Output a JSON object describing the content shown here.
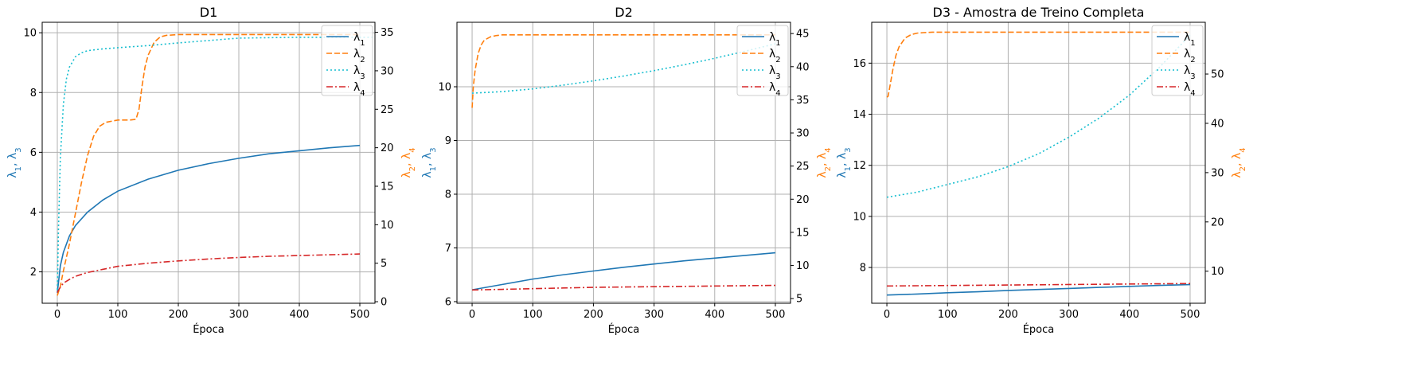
{
  "colors": {
    "lambda1": "#1f77b4",
    "lambda2": "#ff7f0e",
    "lambda3": "#17becf",
    "lambda4": "#d62728",
    "grid": "#b0b0b0"
  },
  "chart_data": [
    {
      "type": "line",
      "title": "D1",
      "xlabel": "Época",
      "ylabel_left": [
        "λ1",
        "λ3"
      ],
      "ylabel_right": [
        "λ2",
        "λ4"
      ],
      "xlim": [
        -25,
        525
      ],
      "ylim_left": [
        0.95,
        10.35
      ],
      "ylim_right": [
        -0.2,
        36.3
      ],
      "xticks": [
        0,
        100,
        200,
        300,
        400,
        500
      ],
      "yticks_left": [
        2,
        4,
        6,
        8,
        10
      ],
      "yticks_right": [
        0,
        5,
        10,
        15,
        20,
        25,
        30,
        35
      ],
      "grid": true,
      "legend": {
        "location": "upper right",
        "entries": [
          "λ1",
          "λ2",
          "λ3",
          "λ4"
        ]
      },
      "series": [
        {
          "name": "λ1",
          "axis": "left",
          "style": "solid",
          "x": [
            0,
            5,
            10,
            20,
            30,
            50,
            75,
            100,
            150,
            200,
            250,
            300,
            350,
            400,
            450,
            500
          ],
          "y": [
            1.3,
            2.2,
            2.65,
            3.2,
            3.55,
            4.0,
            4.4,
            4.7,
            5.1,
            5.4,
            5.62,
            5.8,
            5.95,
            6.05,
            6.15,
            6.23
          ]
        },
        {
          "name": "λ2",
          "axis": "right",
          "style": "dashed",
          "x": [
            0,
            5,
            10,
            20,
            30,
            40,
            50,
            60,
            70,
            80,
            100,
            120,
            130,
            135,
            140,
            145,
            150,
            160,
            170,
            180,
            200,
            300,
            400,
            500
          ],
          "y": [
            0.8,
            2.0,
            4.0,
            7.5,
            11.5,
            15.5,
            19.0,
            21.5,
            22.8,
            23.3,
            23.6,
            23.6,
            23.7,
            25.0,
            28.0,
            30.5,
            32.0,
            33.7,
            34.4,
            34.6,
            34.7,
            34.7,
            34.7,
            34.7
          ]
        },
        {
          "name": "λ3",
          "axis": "left",
          "style": "dotted",
          "x": [
            0,
            2,
            5,
            10,
            15,
            20,
            30,
            40,
            50,
            75,
            100,
            150,
            200,
            300,
            400,
            500,
            525
          ],
          "y": [
            1.4,
            3.5,
            5.8,
            7.6,
            8.45,
            8.85,
            9.2,
            9.33,
            9.4,
            9.46,
            9.5,
            9.57,
            9.66,
            9.82,
            9.85,
            9.85,
            9.85
          ]
        },
        {
          "name": "λ4",
          "axis": "right",
          "style": "dashdot",
          "x": [
            0,
            5,
            10,
            20,
            30,
            50,
            75,
            100,
            150,
            200,
            250,
            300,
            350,
            400,
            450,
            500
          ],
          "y": [
            1.2,
            1.9,
            2.4,
            2.9,
            3.3,
            3.8,
            4.2,
            4.6,
            5.0,
            5.3,
            5.55,
            5.75,
            5.9,
            6.0,
            6.1,
            6.2
          ]
        }
      ]
    },
    {
      "type": "line",
      "title": "D2",
      "xlabel": "Época",
      "ylabel_left": [
        "λ1",
        "λ3"
      ],
      "ylabel_right": [
        "λ2",
        "λ4"
      ],
      "xlim": [
        -25,
        525
      ],
      "ylim_left": [
        5.97,
        11.2
      ],
      "ylim_right": [
        4.3,
        46.7
      ],
      "xticks": [
        0,
        100,
        200,
        300,
        400,
        500
      ],
      "yticks_left": [
        6,
        7,
        8,
        9,
        10
      ],
      "yticks_right": [
        5,
        10,
        15,
        20,
        25,
        30,
        35,
        40,
        45
      ],
      "grid": true,
      "legend": {
        "location": "upper right",
        "entries": [
          "λ1",
          "λ2",
          "λ3",
          "λ4"
        ]
      },
      "series": [
        {
          "name": "λ1",
          "axis": "left",
          "style": "solid",
          "x": [
            0,
            50,
            100,
            150,
            200,
            250,
            300,
            350,
            400,
            450,
            500
          ],
          "y": [
            6.22,
            6.32,
            6.42,
            6.5,
            6.57,
            6.64,
            6.7,
            6.76,
            6.81,
            6.86,
            6.91
          ]
        },
        {
          "name": "λ2",
          "axis": "right",
          "style": "dashed",
          "x": [
            0,
            2,
            5,
            10,
            15,
            20,
            30,
            40,
            50,
            75,
            100,
            200,
            300,
            400,
            500
          ],
          "y": [
            33.8,
            37.0,
            39.5,
            42.0,
            43.3,
            44.0,
            44.5,
            44.7,
            44.8,
            44.8,
            44.8,
            44.8,
            44.8,
            44.8,
            44.8
          ]
        },
        {
          "name": "λ3",
          "axis": "left",
          "style": "dotted",
          "x": [
            0,
            50,
            100,
            150,
            200,
            250,
            300,
            350,
            400,
            450,
            500
          ],
          "y": [
            9.88,
            9.91,
            9.96,
            10.03,
            10.11,
            10.2,
            10.3,
            10.41,
            10.53,
            10.66,
            10.8
          ]
        },
        {
          "name": "λ4",
          "axis": "right",
          "style": "dashdot",
          "x": [
            0,
            50,
            100,
            150,
            200,
            250,
            300,
            350,
            400,
            450,
            500
          ],
          "y": [
            6.3,
            6.4,
            6.5,
            6.6,
            6.7,
            6.75,
            6.8,
            6.85,
            6.9,
            6.95,
            7.0
          ]
        }
      ]
    },
    {
      "type": "line",
      "title": "D3 - Amostra de Treino Completa",
      "xlabel": "Época",
      "ylabel_left": [
        "λ1",
        "λ3"
      ],
      "ylabel_right": [
        "λ2",
        "λ4"
      ],
      "xlim": [
        -25,
        525
      ],
      "ylim_left": [
        6.6,
        17.6
      ],
      "ylim_right": [
        3.5,
        60.5
      ],
      "xticks": [
        0,
        100,
        200,
        300,
        400,
        500
      ],
      "yticks_left": [
        8,
        10,
        12,
        14,
        16
      ],
      "yticks_right": [
        10,
        20,
        30,
        40,
        50
      ],
      "grid": true,
      "legend": {
        "location": "upper right",
        "entries": [
          "λ1",
          "λ2",
          "λ3",
          "λ4"
        ]
      },
      "series": [
        {
          "name": "λ1",
          "axis": "left",
          "style": "solid",
          "x": [
            0,
            50,
            100,
            150,
            200,
            250,
            300,
            350,
            400,
            450,
            500
          ],
          "y": [
            6.92,
            6.96,
            7.01,
            7.05,
            7.1,
            7.14,
            7.18,
            7.22,
            7.26,
            7.3,
            7.33
          ]
        },
        {
          "name": "λ2",
          "axis": "right",
          "style": "dashed",
          "x": [
            0,
            2,
            5,
            10,
            15,
            20,
            30,
            40,
            50,
            60,
            75,
            100,
            200,
            300,
            400,
            500
          ],
          "y": [
            45.3,
            45.5,
            47.5,
            51.0,
            53.8,
            55.5,
            57.3,
            58.0,
            58.3,
            58.4,
            58.5,
            58.5,
            58.5,
            58.5,
            58.5,
            58.5
          ]
        },
        {
          "name": "λ3",
          "axis": "left",
          "style": "dotted",
          "x": [
            0,
            50,
            100,
            150,
            200,
            250,
            300,
            350,
            400,
            450,
            500
          ],
          "y": [
            10.75,
            10.95,
            11.25,
            11.55,
            11.95,
            12.45,
            13.1,
            13.85,
            14.75,
            15.85,
            17.1
          ]
        },
        {
          "name": "λ4",
          "axis": "right",
          "style": "dashdot",
          "x": [
            0,
            50,
            100,
            150,
            200,
            250,
            300,
            350,
            400,
            450,
            500
          ],
          "y": [
            7.0,
            7.05,
            7.1,
            7.15,
            7.2,
            7.25,
            7.3,
            7.35,
            7.4,
            7.45,
            7.5
          ]
        }
      ]
    }
  ]
}
